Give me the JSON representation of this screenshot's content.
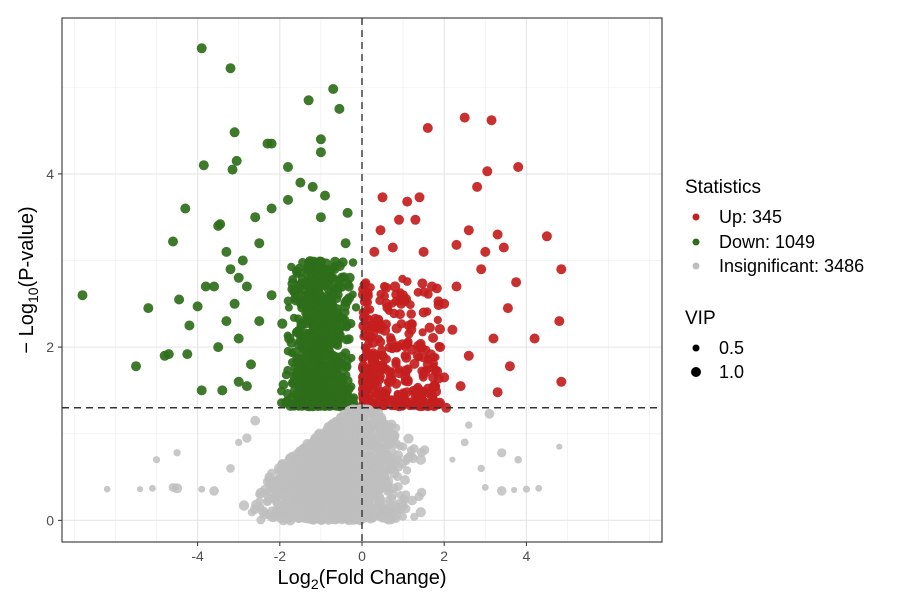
{
  "chart_data": {
    "type": "scatter",
    "title": "",
    "xlabel": {
      "main": "Log",
      "sub": "2",
      "rest": "(Fold Change)"
    },
    "ylabel": {
      "prefix": "− Log",
      "sub": "10",
      "rest": "(P-value)"
    },
    "xlim": [
      -7.3,
      7.3
    ],
    "ylim": [
      -0.25,
      5.8
    ],
    "x_ticks": [
      -4,
      -2,
      0,
      2,
      4
    ],
    "x_tick_labels": [
      "-4",
      "-2",
      "0",
      "2",
      "4"
    ],
    "y_ticks": [
      0,
      2,
      4
    ],
    "y_tick_labels": [
      "0",
      "2",
      "4"
    ],
    "grid": true,
    "thresholds": {
      "vline_x": 0,
      "hline_y": 1.3
    },
    "legend_position": "right",
    "colors": {
      "up": "#c41e1e",
      "down": "#2e6e1a",
      "insignificant": "#bebebe"
    },
    "statistics_legend": {
      "title": "Statistics",
      "items": [
        {
          "key": "up",
          "label": "Up: 345"
        },
        {
          "key": "down",
          "label": "Down: 1049"
        },
        {
          "key": "insignificant",
          "label": "Insignificant: 3486"
        }
      ]
    },
    "vip_legend": {
      "title": "VIP",
      "items": [
        {
          "label": "0.5",
          "vip": 0.5
        },
        {
          "label": "1.0",
          "vip": 1.0
        }
      ]
    },
    "series": [
      {
        "key": "down",
        "points": [
          [
            -3.9,
            5.45
          ],
          [
            -3.2,
            5.22
          ],
          [
            -1.3,
            4.85
          ],
          [
            -0.7,
            4.98
          ],
          [
            -0.55,
            4.75
          ],
          [
            -1.0,
            4.4
          ],
          [
            -3.1,
            4.48
          ],
          [
            -2.3,
            4.35
          ],
          [
            -2.2,
            4.35
          ],
          [
            -1.0,
            4.25
          ],
          [
            -3.85,
            4.1
          ],
          [
            -3.05,
            4.15
          ],
          [
            -1.8,
            4.08
          ],
          [
            -3.15,
            4.05
          ],
          [
            -4.3,
            3.6
          ],
          [
            -3.5,
            3.4
          ],
          [
            -3.45,
            3.42
          ],
          [
            -4.6,
            3.22
          ],
          [
            -6.8,
            2.6
          ],
          [
            -5.2,
            2.45
          ],
          [
            -4.0,
            2.47
          ],
          [
            -4.45,
            2.55
          ],
          [
            -4.2,
            2.25
          ],
          [
            -5.5,
            1.78
          ],
          [
            -4.7,
            1.92
          ],
          [
            -4.8,
            1.9
          ],
          [
            -4.25,
            1.92
          ],
          [
            -3.9,
            1.5
          ],
          [
            -3.4,
            1.5
          ],
          [
            -3.8,
            2.7
          ],
          [
            -3.6,
            2.7
          ],
          [
            -3.2,
            2.9
          ],
          [
            -3.0,
            2.8
          ],
          [
            -3.3,
            3.1
          ],
          [
            -2.5,
            3.2
          ],
          [
            -2.8,
            2.7
          ],
          [
            -2.2,
            3.6
          ],
          [
            -1.5,
            3.9
          ],
          [
            -1.2,
            3.85
          ],
          [
            -0.9,
            3.75
          ],
          [
            -1.8,
            3.7
          ],
          [
            -1.0,
            3.5
          ],
          [
            -0.35,
            3.55
          ],
          [
            -0.4,
            3.2
          ],
          [
            -0.3,
            2.8
          ],
          [
            -0.32,
            2.7
          ],
          [
            -2.6,
            3.5
          ],
          [
            -2.9,
            3.0
          ],
          [
            -3.1,
            2.5
          ],
          [
            -3.3,
            2.3
          ],
          [
            -3.0,
            2.1
          ],
          [
            -2.7,
            1.8
          ],
          [
            -3.5,
            2.0
          ],
          [
            -3.0,
            1.6
          ],
          [
            -2.8,
            1.55
          ],
          [
            -2.5,
            2.3
          ],
          [
            -2.2,
            2.6
          ]
        ]
      },
      {
        "key": "up",
        "points": [
          [
            2.5,
            4.65
          ],
          [
            3.15,
            4.62
          ],
          [
            1.6,
            4.53
          ],
          [
            3.05,
            4.03
          ],
          [
            3.8,
            4.08
          ],
          [
            2.8,
            3.85
          ],
          [
            0.5,
            3.73
          ],
          [
            1.4,
            3.73
          ],
          [
            1.1,
            3.68
          ],
          [
            0.9,
            3.47
          ],
          [
            1.3,
            3.47
          ],
          [
            2.6,
            3.35
          ],
          [
            3.3,
            3.3
          ],
          [
            4.5,
            3.28
          ],
          [
            4.85,
            2.9
          ],
          [
            0.3,
            3.1
          ],
          [
            0.45,
            3.35
          ],
          [
            0.75,
            3.15
          ],
          [
            1.5,
            3.1
          ],
          [
            2.3,
            3.18
          ],
          [
            3.0,
            3.1
          ],
          [
            3.45,
            3.15
          ],
          [
            2.9,
            2.9
          ],
          [
            3.75,
            2.75
          ],
          [
            3.55,
            2.45
          ],
          [
            4.8,
            2.3
          ],
          [
            4.2,
            2.1
          ],
          [
            3.2,
            2.1
          ],
          [
            2.6,
            1.9
          ],
          [
            3.6,
            1.78
          ],
          [
            4.85,
            1.6
          ],
          [
            3.3,
            1.48
          ],
          [
            2.4,
            1.55
          ],
          [
            2.0,
            1.65
          ],
          [
            2.05,
            1.3
          ],
          [
            1.7,
            1.35
          ],
          [
            0.4,
            2.3
          ],
          [
            0.6,
            2.5
          ],
          [
            0.8,
            2.0
          ],
          [
            1.0,
            2.6
          ],
          [
            1.2,
            2.2
          ],
          [
            1.5,
            2.4
          ],
          [
            1.7,
            2.7
          ],
          [
            2.0,
            2.5
          ],
          [
            2.2,
            2.2
          ],
          [
            0.5,
            1.9
          ],
          [
            0.9,
            1.7
          ],
          [
            1.3,
            1.5
          ],
          [
            0.6,
            1.5
          ],
          [
            1.0,
            1.45
          ],
          [
            1.6,
            1.8
          ],
          [
            1.9,
            2.0
          ],
          [
            2.3,
            2.7
          ]
        ]
      }
    ],
    "insignificant_points": [
      [
        -6.2,
        0.36
      ],
      [
        -5.4,
        0.36
      ],
      [
        -5.1,
        0.37
      ],
      [
        -4.5,
        0.37
      ],
      [
        -4.6,
        0.38
      ],
      [
        -3.9,
        0.36
      ],
      [
        -3.6,
        0.34
      ],
      [
        -4.5,
        0.78
      ],
      [
        -5.0,
        0.7
      ],
      [
        -3.2,
        0.6
      ],
      [
        -2.8,
        0.95
      ],
      [
        -2.6,
        1.15
      ],
      [
        -3.0,
        0.9
      ],
      [
        -2.2,
        0.4
      ],
      [
        -2.5,
        0.3
      ],
      [
        3.0,
        0.38
      ],
      [
        3.4,
        0.34
      ],
      [
        3.7,
        0.35
      ],
      [
        4.0,
        0.36
      ],
      [
        4.3,
        0.37
      ],
      [
        4.8,
        0.85
      ],
      [
        3.8,
        0.7
      ],
      [
        3.4,
        0.78
      ],
      [
        2.9,
        0.6
      ],
      [
        3.1,
        1.23
      ],
      [
        2.6,
        1.1
      ],
      [
        2.5,
        0.9
      ],
      [
        2.2,
        0.7
      ]
    ],
    "density_clusters": [
      {
        "key": "down",
        "xr": [
          -2.1,
          -0.02
        ],
        "yr": [
          1.32,
          3.0
        ],
        "count": 900
      },
      {
        "key": "up",
        "xr": [
          0.02,
          1.9
        ],
        "yr": [
          1.32,
          2.8
        ],
        "count": 300
      },
      {
        "key": "insignificant",
        "xr": [
          -2.5,
          2.5
        ],
        "yr": [
          0.0,
          1.28
        ],
        "count": 1600
      }
    ]
  }
}
